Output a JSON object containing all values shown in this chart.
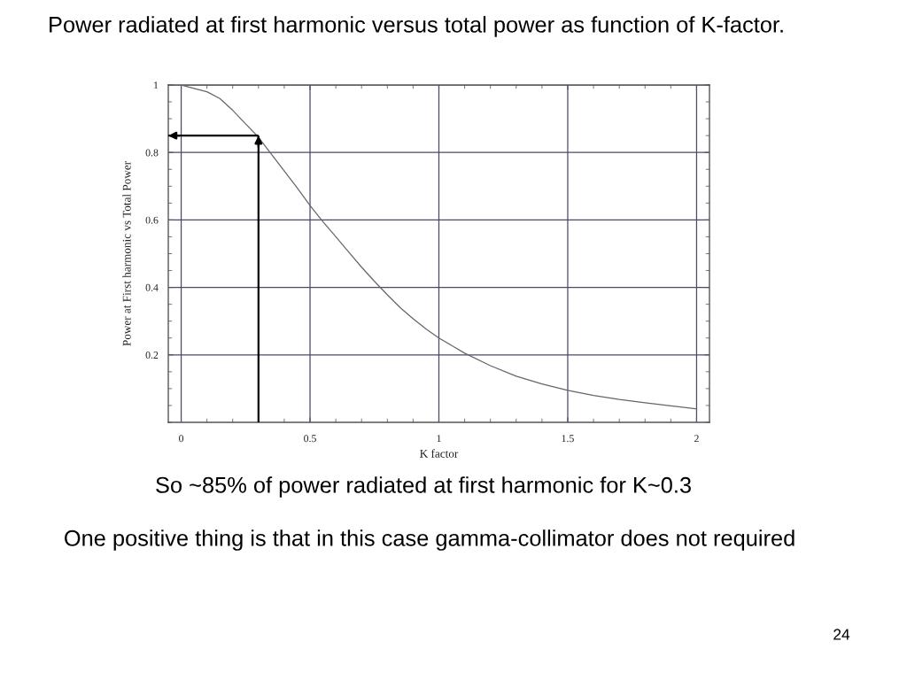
{
  "chart_data": {
    "type": "line",
    "title": "Power radiated at first harmonic versus total power as function of K-factor.",
    "xlabel": "K factor",
    "ylabel": "Power at First harmonic vs Total Power",
    "x": [
      0,
      0.05,
      0.1,
      0.15,
      0.2,
      0.25,
      0.3,
      0.35,
      0.4,
      0.45,
      0.5,
      0.55,
      0.6,
      0.65,
      0.7,
      0.75,
      0.8,
      0.85,
      0.9,
      0.95,
      1.0,
      1.1,
      1.2,
      1.3,
      1.4,
      1.5,
      1.6,
      1.7,
      1.8,
      1.9,
      2.0
    ],
    "series": [
      {
        "color": "#666666",
        "values": [
          1.0,
          0.99,
          0.98,
          0.96,
          0.925,
          0.885,
          0.845,
          0.795,
          0.745,
          0.695,
          0.643,
          0.595,
          0.55,
          0.505,
          0.46,
          0.418,
          0.378,
          0.34,
          0.307,
          0.277,
          0.25,
          0.205,
          0.168,
          0.137,
          0.114,
          0.095,
          0.08,
          0.068,
          0.058,
          0.049,
          0.04
        ]
      }
    ],
    "ref_lines": [
      {
        "axis": "x",
        "value": 0.3,
        "color": "#000000"
      },
      {
        "axis": "y",
        "value": 0.85,
        "color": "#000000"
      }
    ],
    "xlim": [
      -0.05,
      2.05
    ],
    "ylim": [
      0,
      1
    ],
    "xticks": [
      0,
      0.5,
      1,
      1.5,
      2
    ],
    "yticks": [
      0.2,
      0.4,
      0.6,
      0.8,
      1
    ],
    "grid": true,
    "line_style": "solid",
    "annotations": [
      "So ~85% of power radiated at first harmonic for K~0.3",
      "One positive thing is that in this case gamma-collimator does not required",
      "24"
    ]
  }
}
